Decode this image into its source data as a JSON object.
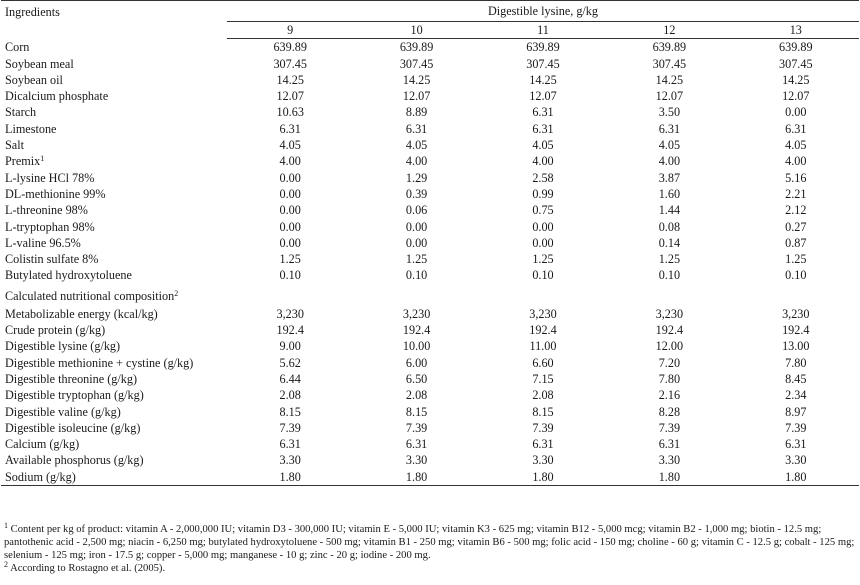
{
  "header": {
    "ingredients_label": "Ingredients",
    "group_label": "Digestible lysine, g/kg",
    "levels": [
      "9",
      "10",
      "11",
      "12",
      "13"
    ]
  },
  "ingredients": [
    {
      "name": "Corn",
      "sup": "",
      "values": [
        "639.89",
        "639.89",
        "639.89",
        "639.89",
        "639.89"
      ]
    },
    {
      "name": "Soybean meal",
      "sup": "",
      "values": [
        "307.45",
        "307.45",
        "307.45",
        "307.45",
        "307.45"
      ]
    },
    {
      "name": "Soybean oil",
      "sup": "",
      "values": [
        "14.25",
        "14.25",
        "14.25",
        "14.25",
        "14.25"
      ]
    },
    {
      "name": "Dicalcium phosphate",
      "sup": "",
      "values": [
        "12.07",
        "12.07",
        "12.07",
        "12.07",
        "12.07"
      ]
    },
    {
      "name": "Starch",
      "sup": "",
      "values": [
        "10.63",
        "8.89",
        "6.31",
        "3.50",
        "0.00"
      ]
    },
    {
      "name": "Limestone",
      "sup": "",
      "values": [
        "6.31",
        "6.31",
        "6.31",
        "6.31",
        "6.31"
      ]
    },
    {
      "name": "Salt",
      "sup": "",
      "values": [
        "4.05",
        "4.05",
        "4.05",
        "4.05",
        "4.05"
      ]
    },
    {
      "name": "Premix",
      "sup": "1",
      "values": [
        "4.00",
        "4.00",
        "4.00",
        "4.00",
        "4.00"
      ]
    },
    {
      "name": "L-lysine HCl 78%",
      "sup": "",
      "values": [
        "0.00",
        "1.29",
        "2.58",
        "3.87",
        "5.16"
      ]
    },
    {
      "name": "DL-methionine 99%",
      "sup": "",
      "values": [
        "0.00",
        "0.39",
        "0.99",
        "1.60",
        "2.21"
      ]
    },
    {
      "name": "L-threonine 98%",
      "sup": "",
      "values": [
        "0.00",
        "0.06",
        "0.75",
        "1.44",
        "2.12"
      ]
    },
    {
      "name": "L-tryptophan 98%",
      "sup": "",
      "values": [
        "0.00",
        "0.00",
        "0.00",
        "0.08",
        "0.27"
      ]
    },
    {
      "name": "L-valine 96.5%",
      "sup": "",
      "values": [
        "0.00",
        "0.00",
        "0.00",
        "0.14",
        "0.87"
      ]
    },
    {
      "name": "Colistin sulfate 8%",
      "sup": "",
      "values": [
        "1.25",
        "1.25",
        "1.25",
        "1.25",
        "1.25"
      ]
    },
    {
      "name": "Butylated hydroxytoluene",
      "sup": "",
      "values": [
        "0.10",
        "0.10",
        "0.10",
        "0.10",
        "0.10"
      ]
    }
  ],
  "composition_section": {
    "label": "Calculated nutritional composition",
    "sup": "2"
  },
  "composition": [
    {
      "name": "Metabolizable energy (kcal/kg)",
      "values": [
        "3,230",
        "3,230",
        "3,230",
        "3,230",
        "3,230"
      ]
    },
    {
      "name": "Crude protein (g/kg)",
      "values": [
        "192.4",
        "192.4",
        "192.4",
        "192.4",
        "192.4"
      ]
    },
    {
      "name": "Digestible lysine (g/kg)",
      "values": [
        "9.00",
        "10.00",
        "11.00",
        "12.00",
        "13.00"
      ]
    },
    {
      "name": "Digestible methionine + cystine (g/kg)",
      "values": [
        "5.62",
        "6.00",
        "6.60",
        "7.20",
        "7.80"
      ]
    },
    {
      "name": "Digestible threonine (g/kg)",
      "values": [
        "6.44",
        "6.50",
        "7.15",
        "7.80",
        "8.45"
      ]
    },
    {
      "name": "Digestible tryptophan (g/kg)",
      "values": [
        "2.08",
        "2.08",
        "2.08",
        "2.16",
        "2.34"
      ]
    },
    {
      "name": "Digestible valine (g/kg)",
      "values": [
        "8.15",
        "8.15",
        "8.15",
        "8.28",
        "8.97"
      ]
    },
    {
      "name": "Digestible isoleucine (g/kg)",
      "values": [
        "7.39",
        "7.39",
        "7.39",
        "7.39",
        "7.39"
      ]
    },
    {
      "name": "Calcium (g/kg)",
      "values": [
        "6.31",
        "6.31",
        "6.31",
        "6.31",
        "6.31"
      ]
    },
    {
      "name": "Available phosphorus (g/kg)",
      "values": [
        "3.30",
        "3.30",
        "3.30",
        "3.30",
        "3.30"
      ]
    },
    {
      "name": "Sodium (g/kg)",
      "values": [
        "1.80",
        "1.80",
        "1.80",
        "1.80",
        "1.80"
      ]
    }
  ],
  "footnotes": [
    {
      "mark": "1",
      "text": " Content per kg of product: vitamin A - 2,000,000 IU; vitamin D3 - 300,000 IU; vitamin E - 5,000 IU; vitamin K3 - 625 mg; vitamin B12 - 5,000 mcg; vitamin B2 - 1,000 mg; biotin - 12.5 mg; pantothenic acid - 2,500 mg; niacin - 6,250 mg; butylated hydroxytoluene - 500 mg; vitamin B1 - 250 mg; vitamin B6 - 500 mg; folic acid - 150 mg; choline - 60 g; vitamin C - 12.5 g; cobalt - 125 mg; selenium - 125 mg; iron - 17.5 g; copper - 5,000 mg; manganese - 10 g; zinc - 20 g; iodine - 200 mg."
    },
    {
      "mark": "2",
      "text": " According to Rostagno et al. (2005)."
    }
  ]
}
